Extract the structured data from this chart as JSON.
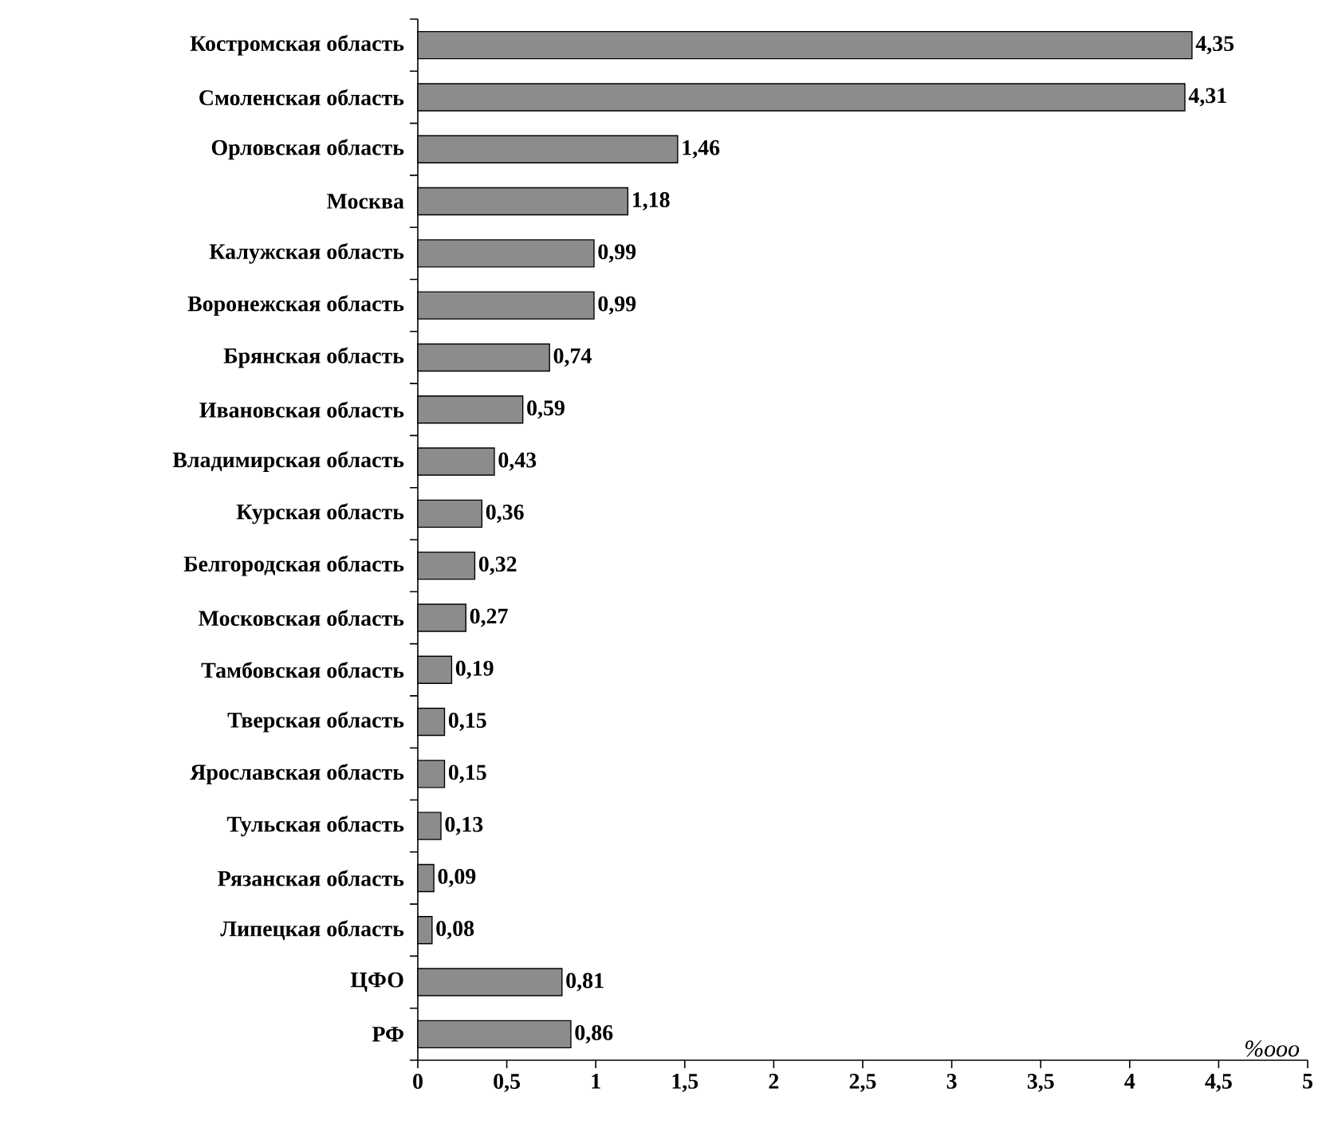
{
  "chart_data": {
    "type": "bar",
    "orientation": "horizontal",
    "categories": [
      "Костромская область",
      "Смоленская область",
      "Орловская область",
      "Москва",
      "Калужская область",
      "Воронежская область",
      "Брянская область",
      "Ивановская область",
      "Владимирская область",
      "Курская область",
      "Белгородская область",
      "Московская область",
      "Тамбовская область",
      "Тверская область",
      "Ярославская область",
      "Тульская область",
      "Рязанская область",
      "Липецкая область",
      "ЦФО",
      "РФ"
    ],
    "values": [
      4.35,
      4.31,
      1.46,
      1.18,
      0.99,
      0.99,
      0.74,
      0.59,
      0.43,
      0.36,
      0.32,
      0.27,
      0.19,
      0.15,
      0.15,
      0.13,
      0.09,
      0.08,
      0.81,
      0.86
    ],
    "value_labels": [
      "4,35",
      "4,31",
      "1,46",
      "1,18",
      "0,99",
      "0,99",
      "0,74",
      "0,59",
      "0,43",
      "0,36",
      "0,32",
      "0,27",
      "0,19",
      "0,15",
      "0,15",
      "0,13",
      "0,09",
      "0,08",
      "0,81",
      "0,86"
    ],
    "color": "#8c8c8c",
    "xlim": [
      0,
      5
    ],
    "xticks": [
      0,
      {
        "value": 0.5,
        "label": "0,5"
      },
      1,
      {
        "value": 1.5,
        "label": "1,5"
      },
      2,
      {
        "value": 2.5,
        "label": "2,5"
      },
      3,
      {
        "value": 3.5,
        "label": "3,5"
      },
      4,
      {
        "value": 4.5,
        "label": "4,5"
      },
      5
    ],
    "annotations": [
      "*%ooo*"
    ]
  }
}
